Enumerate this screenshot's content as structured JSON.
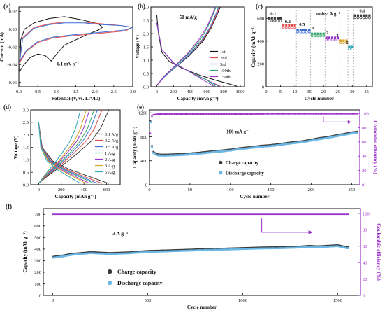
{
  "figure": "Electrochemical performance panels",
  "colors": {
    "axis": "#111111",
    "purple": "#9b30c8",
    "charge": "#3a3a3a",
    "discharge": "#6bb7e6",
    "cv1": "#111111",
    "cv2": "#e04a4a",
    "cv3": "#3a6fd8",
    "cyc1": "#111111",
    "cyc2": "#e04a4a",
    "cyc3": "#3a6fd8",
    "cyc100": "#33a66b",
    "cyc150": "#9b30c8",
    "r01": "#3a3a3a",
    "r02": "#e04a4a",
    "r05": "#3a6fd8",
    "r1": "#33a66b",
    "r2": "#9b30c8",
    "r3": "#d9a020",
    "r5": "#2aa7b8"
  },
  "chart_data": [
    {
      "panel": "a",
      "panel_label": "(a)",
      "type": "line",
      "xlabel": "Potential (V, vs. Li⁺/Li)",
      "ylabel": "Current (mA)",
      "annotation": "0.1 mV s⁻¹",
      "xlim": [
        0,
        3.0
      ],
      "ylim": [
        -0.065,
        0.025
      ],
      "xticks": [
        "0.0",
        "0.5",
        "1.0",
        "1.5",
        "2.0",
        "2.5",
        "3.0"
      ],
      "yticks": [
        "0.02",
        "0.00",
        "-0.02",
        "-0.04",
        "-0.06"
      ],
      "yticks_values": [
        0.02,
        0.0,
        -0.02,
        -0.04,
        -0.06
      ],
      "series": [
        {
          "color_key": "cv1",
          "x": [
            0.02,
            0.1,
            0.3,
            0.5,
            0.7,
            0.85,
            1.0,
            1.2,
            1.5,
            1.8,
            2.1,
            2.2,
            2.1,
            1.6,
            1.2,
            0.8,
            0.4,
            0.15,
            0.05,
            0.02
          ],
          "y": [
            -0.048,
            -0.042,
            -0.032,
            -0.028,
            -0.03,
            -0.036,
            -0.028,
            -0.018,
            -0.012,
            -0.006,
            -0.001,
            0.002,
            0.006,
            0.011,
            0.014,
            0.012,
            0.007,
            0.0,
            -0.012,
            -0.048
          ]
        },
        {
          "color_key": "cv2",
          "x": [
            0.02,
            0.2,
            0.5,
            0.9,
            1.3,
            1.8,
            2.3,
            2.8,
            3.0,
            2.7,
            2.2,
            1.7,
            1.2,
            0.8,
            0.4,
            0.1,
            0.02
          ],
          "y": [
            -0.038,
            -0.025,
            -0.015,
            -0.01,
            -0.008,
            -0.006,
            -0.004,
            -0.002,
            0.002,
            0.004,
            0.006,
            0.008,
            0.008,
            0.006,
            0.002,
            -0.01,
            -0.038
          ]
        },
        {
          "color_key": "cv3",
          "x": [
            0.02,
            0.2,
            0.5,
            0.9,
            1.3,
            1.8,
            2.3,
            2.8,
            3.0,
            2.7,
            2.2,
            1.7,
            1.2,
            0.8,
            0.4,
            0.1,
            0.02
          ],
          "y": [
            -0.036,
            -0.024,
            -0.014,
            -0.009,
            -0.007,
            -0.005,
            -0.003,
            -0.001,
            0.002,
            0.004,
            0.005,
            0.007,
            0.007,
            0.005,
            0.001,
            -0.011,
            -0.036
          ]
        }
      ]
    },
    {
      "panel": "b",
      "panel_label": "(b)",
      "type": "line",
      "xlabel": "Capacity (mAh g⁻¹)",
      "ylabel": "Voltage (V)",
      "annotation": "50 mA/g",
      "xlim": [
        -70,
        1050
      ],
      "ylim": [
        0,
        3.0
      ],
      "xticks": [
        "0",
        "200",
        "400",
        "600",
        "800",
        "1000"
      ],
      "xticks_values": [
        0,
        200,
        400,
        600,
        800,
        1000
      ],
      "yticks": [
        "0.0",
        "0.5",
        "1.0",
        "1.5",
        "2.0",
        "2.5",
        "3.0"
      ],
      "yticks_values": [
        0,
        0.5,
        1.0,
        1.5,
        2.0,
        2.5,
        3.0
      ],
      "legend": [
        "1st",
        "2nd",
        "3rd",
        "100th",
        "150th"
      ],
      "series": [
        {
          "name": "1st",
          "color_key": "cyc1",
          "x": [
            0,
            20,
            60,
            150,
            300,
            500,
            700,
            850,
            960
          ],
          "y": [
            2.7,
            2.0,
            1.3,
            0.95,
            0.7,
            0.45,
            0.25,
            0.12,
            0.02
          ]
        },
        {
          "name": "1st",
          "color_key": "cyc1",
          "x": [
            0,
            100,
            250,
            400,
            550,
            650,
            720,
            760
          ],
          "y": [
            0.05,
            0.4,
            0.8,
            1.2,
            1.7,
            2.2,
            2.7,
            3.0
          ]
        },
        {
          "name": "2nd",
          "color_key": "cyc2",
          "x": [
            0,
            60,
            200,
            400,
            600,
            760
          ],
          "y": [
            2.4,
            1.4,
            0.9,
            0.55,
            0.25,
            0.02
          ]
        },
        {
          "name": "2nd",
          "color_key": "cyc2",
          "x": [
            0,
            100,
            250,
            400,
            550,
            650,
            720,
            750
          ],
          "y": [
            0.05,
            0.4,
            0.8,
            1.25,
            1.75,
            2.25,
            2.75,
            3.0
          ]
        },
        {
          "name": "3rd",
          "color_key": "cyc3",
          "x": [
            0,
            60,
            200,
            400,
            600,
            740
          ],
          "y": [
            2.4,
            1.4,
            0.9,
            0.55,
            0.25,
            0.02
          ]
        },
        {
          "name": "3rd",
          "color_key": "cyc3",
          "x": [
            0,
            100,
            250,
            400,
            540,
            640,
            710,
            740
          ],
          "y": [
            0.05,
            0.4,
            0.8,
            1.25,
            1.75,
            2.25,
            2.75,
            3.0
          ]
        },
        {
          "name": "100th",
          "color_key": "cyc100",
          "x": [
            0,
            60,
            200,
            400,
            600,
            700
          ],
          "y": [
            2.4,
            1.4,
            0.9,
            0.55,
            0.25,
            0.02
          ]
        },
        {
          "name": "100th",
          "color_key": "cyc100",
          "x": [
            0,
            90,
            230,
            380,
            520,
            610,
            680,
            710
          ],
          "y": [
            0.05,
            0.4,
            0.8,
            1.25,
            1.75,
            2.25,
            2.75,
            3.0
          ]
        },
        {
          "name": "150th",
          "color_key": "cyc150",
          "x": [
            0,
            60,
            200,
            400,
            560,
            680
          ],
          "y": [
            2.4,
            1.4,
            0.9,
            0.55,
            0.25,
            0.02
          ]
        },
        {
          "name": "150th",
          "color_key": "cyc150",
          "x": [
            0,
            90,
            220,
            370,
            500,
            600,
            670,
            700
          ],
          "y": [
            0.05,
            0.4,
            0.8,
            1.25,
            1.75,
            2.25,
            2.75,
            3.0
          ]
        }
      ]
    },
    {
      "panel": "c",
      "panel_label": "(c)",
      "type": "scatter",
      "xlabel": "Cycle number",
      "ylabel": "Capacity (mAh g⁻¹)",
      "units_note": "units: A g⁻¹",
      "xlim": [
        0,
        37
      ],
      "ylim": [
        0,
        700
      ],
      "xticks": [
        "0",
        "5",
        "10",
        "15",
        "20",
        "25",
        "30",
        "35"
      ],
      "xticks_values": [
        0,
        5,
        10,
        15,
        20,
        25,
        30,
        35
      ],
      "yticks": [
        "0",
        "200",
        "400",
        "600"
      ],
      "yticks_values": [
        0,
        200,
        400,
        600
      ],
      "rate_labels": [
        {
          "text": "0.1",
          "x": 2.5,
          "y": 630
        },
        {
          "text": "0.2",
          "x": 7.5,
          "y": 560
        },
        {
          "text": "0.5",
          "x": 12.5,
          "y": 535
        },
        {
          "text": "1",
          "x": 16.3,
          "y": 505
        },
        {
          "text": "2",
          "x": 21.3,
          "y": 460
        },
        {
          "text": "3",
          "x": 24.8,
          "y": 440
        },
        {
          "text": "5",
          "x": 28.3,
          "y": 375
        },
        {
          "text": "0.1",
          "x": 33.5,
          "y": 655
        }
      ],
      "segments": [
        {
          "rate_key": "r01",
          "from": 1,
          "to": 5,
          "charge": 600,
          "discharge": 590
        },
        {
          "rate_key": "r02",
          "from": 6,
          "to": 10,
          "charge": 540,
          "discharge": 532
        },
        {
          "rate_key": "r05",
          "from": 11,
          "to": 15,
          "charge": 500,
          "discharge": 493
        },
        {
          "rate_key": "r1",
          "from": 16,
          "to": 20,
          "charge": 465,
          "discharge": 458
        },
        {
          "rate_key": "r2",
          "from": 21,
          "to": 25,
          "charge": 430,
          "discharge": 423
        },
        {
          "rate_key": "r3",
          "from": 26,
          "to": 28,
          "charge": 405,
          "discharge": 398
        },
        {
          "rate_key": "r5",
          "from": 29,
          "to": 30,
          "charge": 350,
          "discharge": 343
        },
        {
          "rate_key": "r01",
          "from": 31,
          "to": 36,
          "charge": 625,
          "discharge": 618
        }
      ]
    },
    {
      "panel": "d",
      "panel_label": "(d)",
      "type": "line",
      "xlabel": "Capacity (mAh g⁻¹)",
      "ylabel": "Voltage (V)",
      "xlim": [
        -70,
        720
      ],
      "ylim": [
        0,
        3.0
      ],
      "xticks": [
        "0",
        "200",
        "400",
        "600"
      ],
      "xticks_values": [
        0,
        200,
        400,
        600
      ],
      "yticks": [
        "0.0",
        "0.5",
        "1.0",
        "1.5",
        "2.0",
        "2.5",
        "3.0"
      ],
      "yticks_values": [
        0,
        0.5,
        1.0,
        1.5,
        2.0,
        2.5,
        3.0
      ],
      "legend": [
        "0.1 A/g",
        "0.2 A/g",
        "0.5 A/g",
        "1 A/g",
        "2 A/g",
        "3 A/g",
        "5 A/g"
      ],
      "series_caps": [
        {
          "name": "0.1 A/g",
          "color_key": "r01",
          "cap": 620
        },
        {
          "name": "0.2 A/g",
          "color_key": "r02",
          "cap": 560
        },
        {
          "name": "0.5 A/g",
          "color_key": "r05",
          "cap": 520
        },
        {
          "name": "1 A/g",
          "color_key": "r1",
          "cap": 490
        },
        {
          "name": "2 A/g",
          "color_key": "r2",
          "cap": 450
        },
        {
          "name": "3 A/g",
          "color_key": "r3",
          "cap": 420
        },
        {
          "name": "5 A/g",
          "color_key": "r5",
          "cap": 370
        }
      ]
    },
    {
      "panel": "e",
      "panel_label": "(e)",
      "type": "scatter",
      "xlabel": "Cycle number",
      "ylabel": "Capacity (mAh g⁻¹)",
      "ylabel_right": "Coulombic efficiency (%)",
      "annotation": "100 mA g⁻¹",
      "legend": [
        "Charge capacity",
        "Discharge capacity"
      ],
      "xlim": [
        0,
        260
      ],
      "ylim": [
        0,
        1250
      ],
      "ylim_right": [
        0,
        105
      ],
      "xticks": [
        "0",
        "50",
        "100",
        "150",
        "200",
        "250"
      ],
      "xticks_values": [
        0,
        50,
        100,
        150,
        200,
        250
      ],
      "yticks": [
        "0",
        "400",
        "800",
        "1200"
      ],
      "yticks_values": [
        0,
        400,
        800,
        1200
      ],
      "yticks_right": [
        "0",
        "20",
        "40",
        "60",
        "80",
        "100"
      ],
      "yticks_right_values": [
        0,
        20,
        40,
        60,
        80,
        100
      ],
      "capacity_x": [
        1,
        2,
        3,
        5,
        8,
        10,
        15,
        20,
        30,
        40,
        50,
        60,
        70,
        80,
        90,
        100,
        110,
        120,
        130,
        140,
        150,
        160,
        170,
        180,
        190,
        200,
        210,
        220,
        230,
        240,
        250,
        258
      ],
      "capacity_y": [
        1050,
        820,
        640,
        540,
        510,
        500,
        495,
        495,
        500,
        505,
        515,
        525,
        540,
        555,
        565,
        580,
        600,
        615,
        630,
        645,
        655,
        670,
        690,
        705,
        720,
        745,
        770,
        790,
        815,
        840,
        865,
        880
      ],
      "efficiency_x": [
        1,
        2,
        3,
        5,
        10,
        50,
        100,
        150,
        200,
        258
      ],
      "efficiency_y": [
        72,
        90,
        96,
        98,
        99,
        99,
        99,
        99.5,
        99.5,
        99.5
      ]
    },
    {
      "panel": "f",
      "panel_label": "(f)",
      "type": "scatter",
      "xlabel": "Cycle number",
      "ylabel": "Capacity (mAh g⁻¹)",
      "ylabel_right": "Coulombic efficiency (%)",
      "annotation": "3 A g⁻¹",
      "legend": [
        "Charge capacity",
        "Discharge capacity"
      ],
      "xlim": [
        -50,
        1620
      ],
      "ylim": [
        0,
        750
      ],
      "ylim_right": [
        0,
        106
      ],
      "xticks": [
        "0",
        "500",
        "1000",
        "1500"
      ],
      "xticks_values": [
        0,
        500,
        1000,
        1500
      ],
      "yticks": [
        "0",
        "100",
        "200",
        "300",
        "400",
        "500",
        "600",
        "700"
      ],
      "yticks_values": [
        0,
        100,
        200,
        300,
        400,
        500,
        600,
        700
      ],
      "yticks_right": [
        "0",
        "20",
        "40",
        "60",
        "80",
        "100"
      ],
      "yticks_right_values": [
        0,
        20,
        40,
        60,
        80,
        100
      ],
      "capacity_x": [
        1,
        50,
        100,
        200,
        300,
        400,
        500,
        600,
        700,
        800,
        900,
        1000,
        1100,
        1200,
        1300,
        1350,
        1400,
        1450,
        1500,
        1550
      ],
      "capacity_y": [
        330,
        340,
        355,
        370,
        362,
        368,
        380,
        385,
        390,
        396,
        400,
        405,
        410,
        412,
        418,
        424,
        420,
        425,
        430,
        412
      ],
      "efficiency_x": [
        1,
        100,
        400,
        750,
        800,
        850,
        950,
        1000,
        1200,
        1300,
        1350,
        1400,
        1450,
        1500,
        1550
      ],
      "efficiency_y": [
        99,
        99,
        99,
        99,
        99,
        99,
        99,
        99,
        99,
        99,
        99,
        99,
        99,
        99,
        99
      ]
    }
  ]
}
